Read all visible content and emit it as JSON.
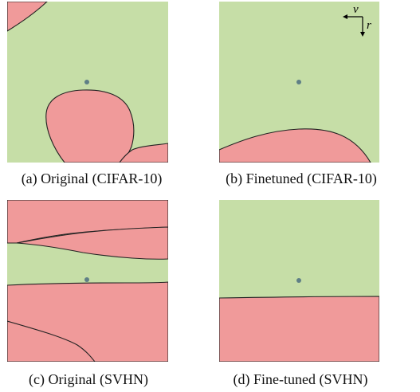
{
  "colors": {
    "region_green": "#c6dea7",
    "region_red": "#f09a9a",
    "boundary": "#222222",
    "origin_dot": "#5f7f86"
  },
  "panels": [
    {
      "caption": "(a) Original (CIFAR-10)"
    },
    {
      "caption": "(b) Finetuned (CIFAR-10)",
      "axes": {
        "horizontal": "v",
        "vertical": "r"
      }
    },
    {
      "caption": "(c) Original (SVHN)"
    },
    {
      "caption": "(d) Fine-tuned (SVHN)"
    }
  ]
}
